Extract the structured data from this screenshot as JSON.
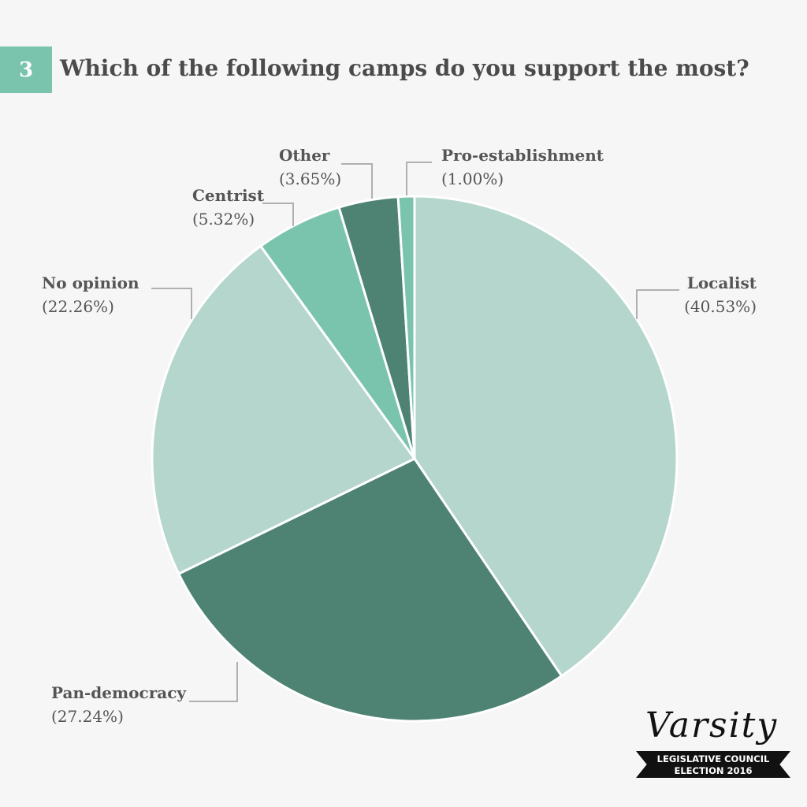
{
  "header": {
    "number": "3",
    "question": "Which of the following camps do you support the most?",
    "badge_color": "#7ac4ad"
  },
  "chart_data": {
    "type": "pie",
    "start_angle_deg": 0,
    "direction": "clockwise",
    "slices": [
      {
        "label": "Localist",
        "value": 40.53,
        "display": "(40.53%)",
        "color": "#b5d6cc"
      },
      {
        "label": "Pan-democracy",
        "value": 27.24,
        "display": "(27.24%)",
        "color": "#4e8373"
      },
      {
        "label": "No opinion",
        "value": 22.26,
        "display": "(22.26%)",
        "color": "#b5d6cc"
      },
      {
        "label": "Centrist",
        "value": 5.32,
        "display": "(5.32%)",
        "color": "#7ac4ad"
      },
      {
        "label": "Other",
        "value": 3.65,
        "display": "(3.65%)",
        "color": "#4e8373"
      },
      {
        "label": "Pro-establishment",
        "value": 1.0,
        "display": "(1.00%)",
        "color": "#7ac4ad"
      }
    ]
  },
  "logo": {
    "wordmark": "Varsity",
    "banner_line1": "LEGISLATIVE COUNCIL",
    "banner_line2": "ELECTION 2016"
  }
}
